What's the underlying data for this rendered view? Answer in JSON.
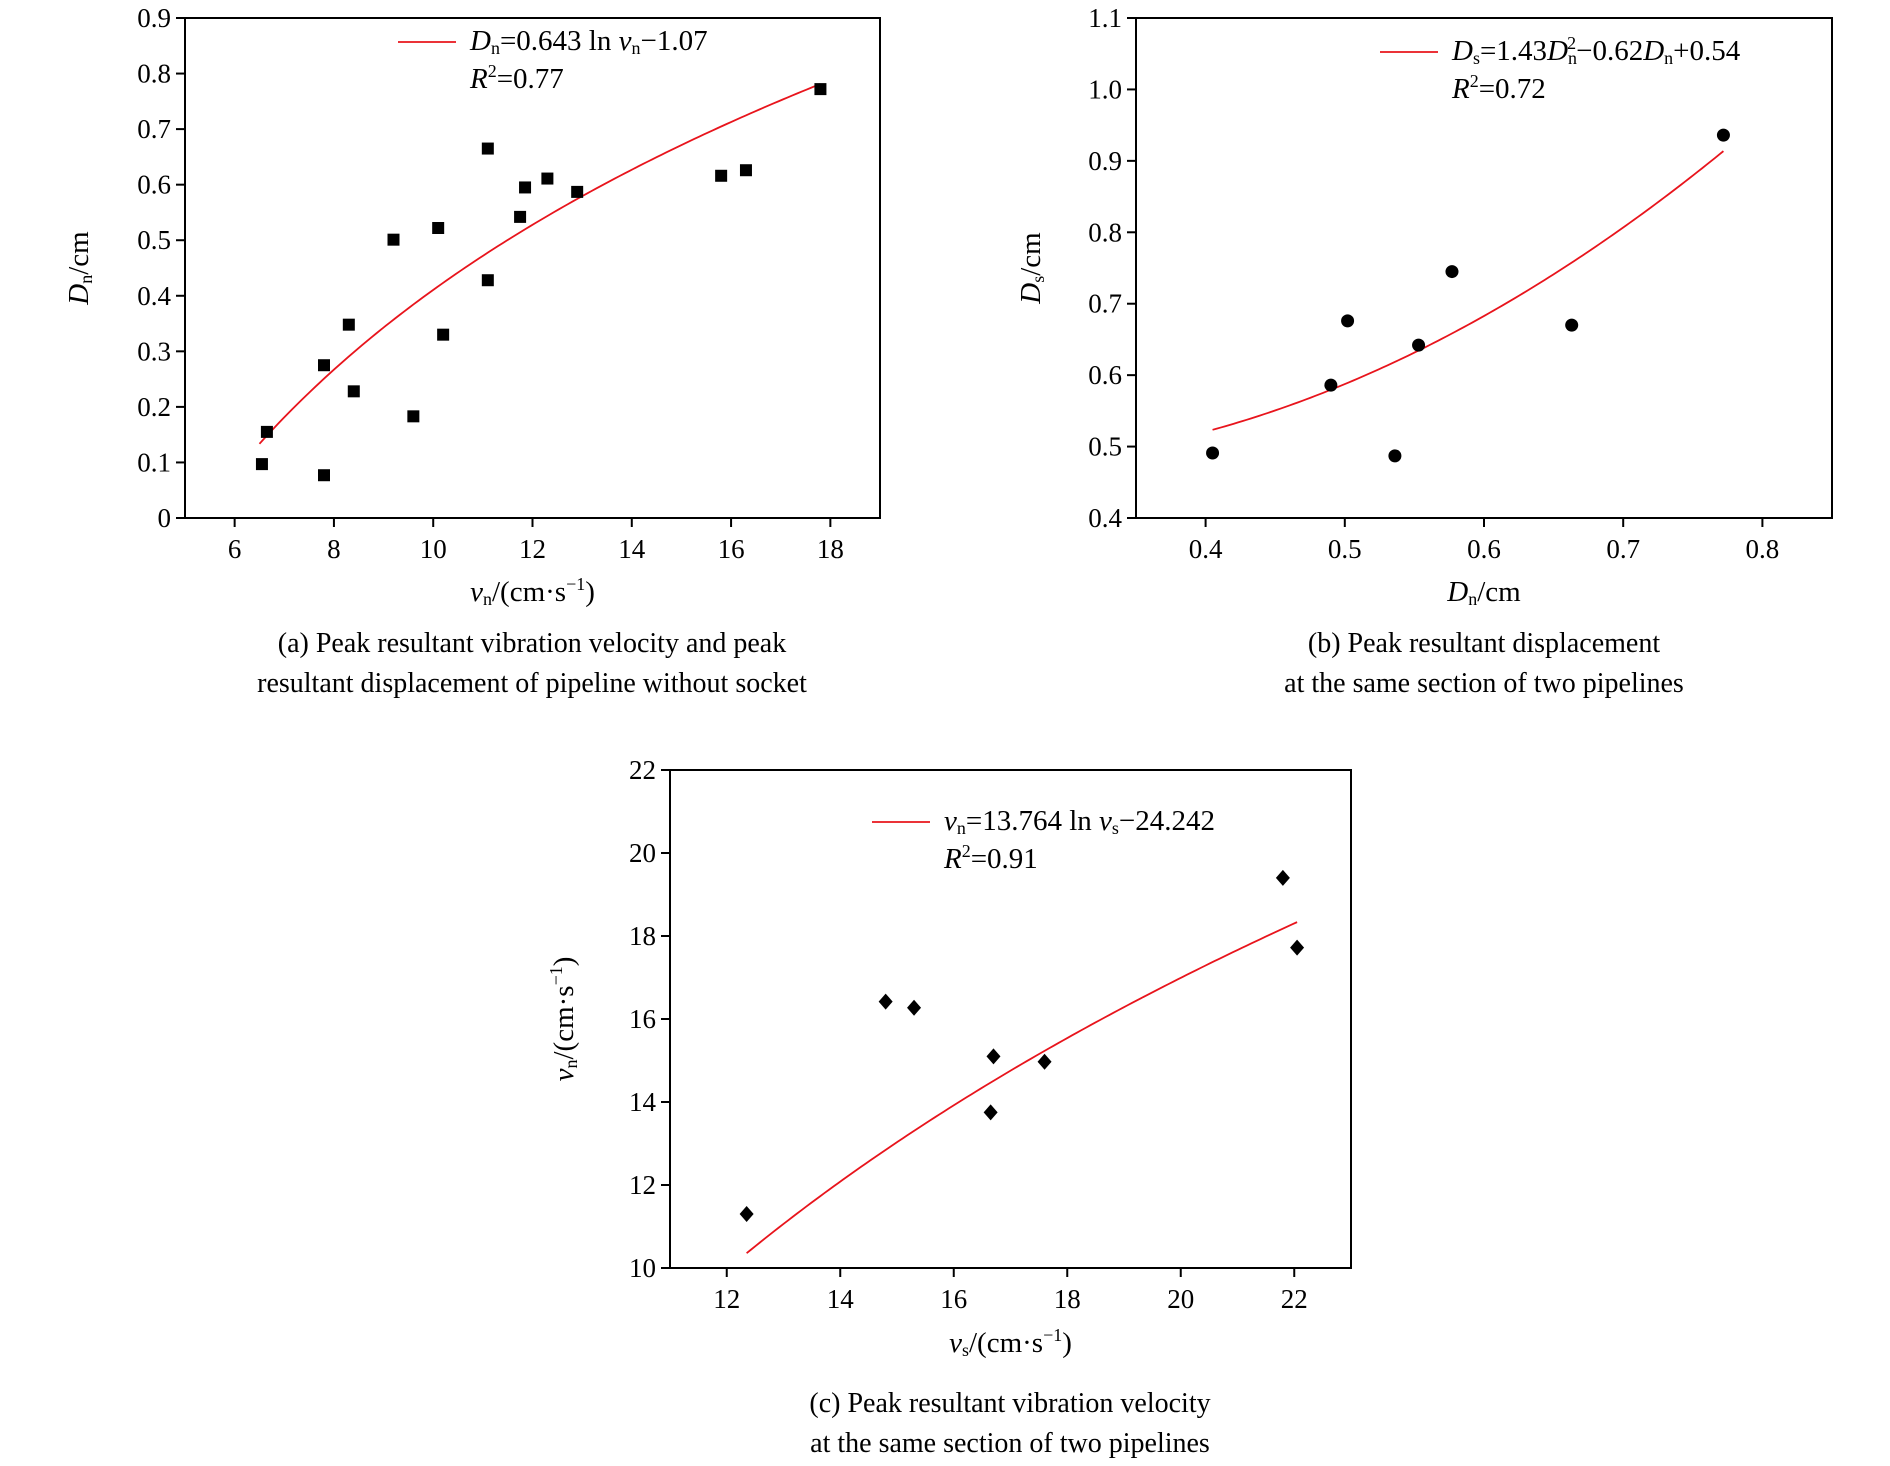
{
  "chart_data": [
    {
      "id": "a",
      "type": "scatter",
      "caption_lines": [
        "(a) Peak resultant vibration velocity and peak",
        "resultant displacement of pipeline without socket"
      ],
      "xlabel": {
        "parts": [
          [
            "i",
            "v"
          ],
          [
            "sub",
            "n"
          ],
          [
            "n",
            "/(cm·s"
          ],
          [
            "sup",
            "−1"
          ],
          [
            "n",
            ")"
          ]
        ]
      },
      "ylabel": {
        "parts": [
          [
            "i",
            "D"
          ],
          [
            "sub",
            "n"
          ],
          [
            "n",
            "/cm"
          ]
        ]
      },
      "xlim": [
        5,
        19
      ],
      "ylim": [
        0,
        0.9
      ],
      "xticks": [
        6,
        8,
        10,
        12,
        14,
        16,
        18
      ],
      "xtick_labels": [
        "6",
        "8",
        "10",
        "12",
        "14",
        "16",
        "18"
      ],
      "yticks": [
        0,
        0.1,
        0.2,
        0.3,
        0.4,
        0.5,
        0.6,
        0.7,
        0.8,
        0.9
      ],
      "ytick_labels": [
        "0",
        "0.1",
        "0.2",
        "0.3",
        "0.4",
        "0.5",
        "0.6",
        "0.7",
        "0.8",
        "0.9"
      ],
      "marker": "square",
      "points": [
        [
          6.55,
          0.097
        ],
        [
          6.65,
          0.155
        ],
        [
          7.8,
          0.077
        ],
        [
          7.8,
          0.275
        ],
        [
          8.3,
          0.348
        ],
        [
          8.4,
          0.228
        ],
        [
          9.2,
          0.501
        ],
        [
          9.6,
          0.183
        ],
        [
          10.1,
          0.522
        ],
        [
          10.2,
          0.33
        ],
        [
          11.1,
          0.428
        ],
        [
          11.1,
          0.665
        ],
        [
          11.75,
          0.542
        ],
        [
          11.85,
          0.595
        ],
        [
          12.3,
          0.611
        ],
        [
          12.9,
          0.587
        ],
        [
          15.8,
          0.616
        ],
        [
          16.3,
          0.626
        ],
        [
          17.8,
          0.772
        ]
      ],
      "fit": {
        "equation": "ln",
        "a": 0.643,
        "b": -1.07,
        "range": [
          6.5,
          17.8
        ]
      },
      "legend_equation": {
        "parts": [
          [
            "i",
            "D"
          ],
          [
            "sub",
            "n"
          ],
          [
            "n",
            "=0.643 ln "
          ],
          [
            "i",
            "v"
          ],
          [
            "sub",
            "n"
          ],
          [
            "n",
            "−1.07"
          ]
        ]
      },
      "legend_r2": {
        "parts": [
          [
            "i",
            "R"
          ],
          [
            "sup",
            "2"
          ],
          [
            "n",
            "=0.77"
          ]
        ]
      },
      "legend_position": "top-right"
    },
    {
      "id": "b",
      "type": "scatter",
      "caption_lines": [
        "(b) Peak resultant displacement",
        "at the same section of two pipelines"
      ],
      "xlabel": {
        "parts": [
          [
            "i",
            "D"
          ],
          [
            "sub",
            "n"
          ],
          [
            "n",
            "/cm"
          ]
        ]
      },
      "ylabel": {
        "parts": [
          [
            "i",
            "D"
          ],
          [
            "sub",
            "s"
          ],
          [
            "n",
            "/cm"
          ]
        ]
      },
      "xlim": [
        0.35,
        0.85
      ],
      "ylim": [
        0.4,
        1.1
      ],
      "xticks": [
        0.4,
        0.5,
        0.6,
        0.7,
        0.8
      ],
      "xtick_labels": [
        "0.4",
        "0.5",
        "0.6",
        "0.7",
        "0.8"
      ],
      "yticks": [
        0.4,
        0.5,
        0.6,
        0.7,
        0.8,
        0.9,
        1.0,
        1.1
      ],
      "ytick_labels": [
        "0.4",
        "0.5",
        "0.6",
        "0.7",
        "0.8",
        "0.9",
        "1.0",
        "1.1"
      ],
      "marker": "circle",
      "points": [
        [
          0.405,
          0.491
        ],
        [
          0.49,
          0.586
        ],
        [
          0.502,
          0.676
        ],
        [
          0.536,
          0.487
        ],
        [
          0.553,
          0.642
        ],
        [
          0.577,
          0.745
        ],
        [
          0.663,
          0.67
        ],
        [
          0.772,
          0.936
        ]
      ],
      "fit": {
        "equation": "quadratic",
        "a": 1.43,
        "b": -0.62,
        "c": 0.54,
        "range": [
          0.405,
          0.772
        ]
      },
      "legend_equation": {
        "parts": [
          [
            "i",
            "D"
          ],
          [
            "sub",
            "s"
          ],
          [
            "n",
            "=1.43"
          ],
          [
            "i",
            "D"
          ],
          [
            "subsup",
            "n",
            "2"
          ],
          [
            "n",
            "−0.62"
          ],
          [
            "i",
            "D"
          ],
          [
            "sub",
            "n"
          ],
          [
            "n",
            "+0.54"
          ]
        ]
      },
      "legend_r2": {
        "parts": [
          [
            "i",
            "R"
          ],
          [
            "sup",
            "2"
          ],
          [
            "n",
            "=0.72"
          ]
        ]
      },
      "legend_position": "top-right"
    },
    {
      "id": "c",
      "type": "scatter",
      "caption_lines": [
        "(c) Peak resultant vibration velocity",
        "at the same section of two pipelines"
      ],
      "xlabel": {
        "parts": [
          [
            "i",
            "v"
          ],
          [
            "sub",
            "s"
          ],
          [
            "n",
            "/(cm·s"
          ],
          [
            "sup",
            "−1"
          ],
          [
            "n",
            ")"
          ]
        ]
      },
      "ylabel": {
        "parts": [
          [
            "i",
            "v"
          ],
          [
            "sub",
            "n"
          ],
          [
            "n",
            "/(cm·s"
          ],
          [
            "sup",
            "−1"
          ],
          [
            "n",
            ")"
          ]
        ]
      },
      "xlim": [
        11,
        23
      ],
      "ylim": [
        10,
        22
      ],
      "xticks": [
        12,
        14,
        16,
        18,
        20,
        22
      ],
      "xtick_labels": [
        "12",
        "14",
        "16",
        "18",
        "20",
        "22"
      ],
      "yticks": [
        10,
        12,
        14,
        16,
        18,
        20,
        22
      ],
      "ytick_labels": [
        "10",
        "12",
        "14",
        "16",
        "18",
        "20",
        "22"
      ],
      "marker": "diamond",
      "points": [
        [
          12.35,
          11.3
        ],
        [
          14.8,
          16.42
        ],
        [
          15.3,
          16.27
        ],
        [
          16.65,
          13.75
        ],
        [
          16.7,
          15.1
        ],
        [
          17.6,
          14.97
        ],
        [
          21.8,
          19.4
        ],
        [
          22.05,
          17.72
        ]
      ],
      "fit": {
        "equation": "ln",
        "a": 13.764,
        "b": -24.242,
        "range": [
          12.35,
          22.05
        ]
      },
      "legend_equation": {
        "parts": [
          [
            "i",
            "v"
          ],
          [
            "sub",
            "n"
          ],
          [
            "n",
            "=13.764 ln "
          ],
          [
            "i",
            "v"
          ],
          [
            "sub",
            "s"
          ],
          [
            "n",
            "−24.242"
          ]
        ]
      },
      "legend_r2": {
        "parts": [
          [
            "i",
            "R"
          ],
          [
            "sup",
            "2"
          ],
          [
            "n",
            "=0.91"
          ]
        ]
      },
      "legend_position": "top-right"
    }
  ]
}
